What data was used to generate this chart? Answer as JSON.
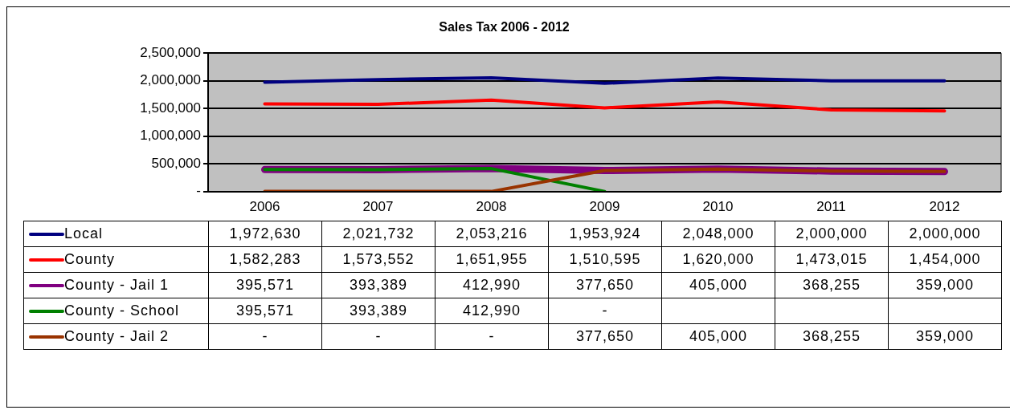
{
  "chart_data": {
    "type": "line",
    "title": "Sales Tax 2006 - 2012",
    "categories": [
      "2006",
      "2007",
      "2008",
      "2009",
      "2010",
      "2011",
      "2012"
    ],
    "series": [
      {
        "name": "Local",
        "color": "#000080",
        "values": [
          1972630,
          2021732,
          2053216,
          1953924,
          2048000,
          2000000,
          2000000
        ],
        "value_labels": [
          "1,972,630",
          "2,021,732",
          "2,053,216",
          "1,953,924",
          "2,048,000",
          "2,000,000",
          "2,000,000"
        ]
      },
      {
        "name": "County",
        "color": "#ff0000",
        "values": [
          1582283,
          1573552,
          1651955,
          1510595,
          1620000,
          1473015,
          1454000
        ],
        "value_labels": [
          "1,582,283",
          "1,573,552",
          "1,651,955",
          "1,510,595",
          "1,620,000",
          "1,473,015",
          "1,454,000"
        ]
      },
      {
        "name": "County - Jail 1",
        "color": "#800080",
        "values": [
          395571,
          393389,
          412990,
          377650,
          405000,
          368255,
          359000
        ],
        "value_labels": [
          "395,571",
          "393,389",
          "412,990",
          "377,650",
          "405,000",
          "368,255",
          "359,000"
        ]
      },
      {
        "name": "County - School",
        "color": "#008000",
        "values": [
          395571,
          393389,
          412990,
          0,
          null,
          null,
          null
        ],
        "value_labels": [
          "395,571",
          "393,389",
          "412,990",
          "-",
          null,
          null,
          null
        ]
      },
      {
        "name": "County - Jail 2",
        "color": "#993300",
        "values": [
          0,
          0,
          0,
          377650,
          405000,
          368255,
          359000
        ],
        "value_labels": [
          "-",
          "-",
          "-",
          "377,650",
          "405,000",
          "368,255",
          "359,000"
        ]
      }
    ],
    "ylim": [
      0,
      2500000
    ],
    "yticks": [
      {
        "value": 0,
        "label": "-"
      },
      {
        "value": 500000,
        "label": "500,000"
      },
      {
        "value": 1000000,
        "label": "1,000,000"
      },
      {
        "value": 1500000,
        "label": "1,500,000"
      },
      {
        "value": 2000000,
        "label": "2,000,000"
      },
      {
        "value": 2500000,
        "label": "2,500,000"
      }
    ],
    "grid": "y",
    "legend": "bottom",
    "marker": "none",
    "line_style": "solid"
  }
}
